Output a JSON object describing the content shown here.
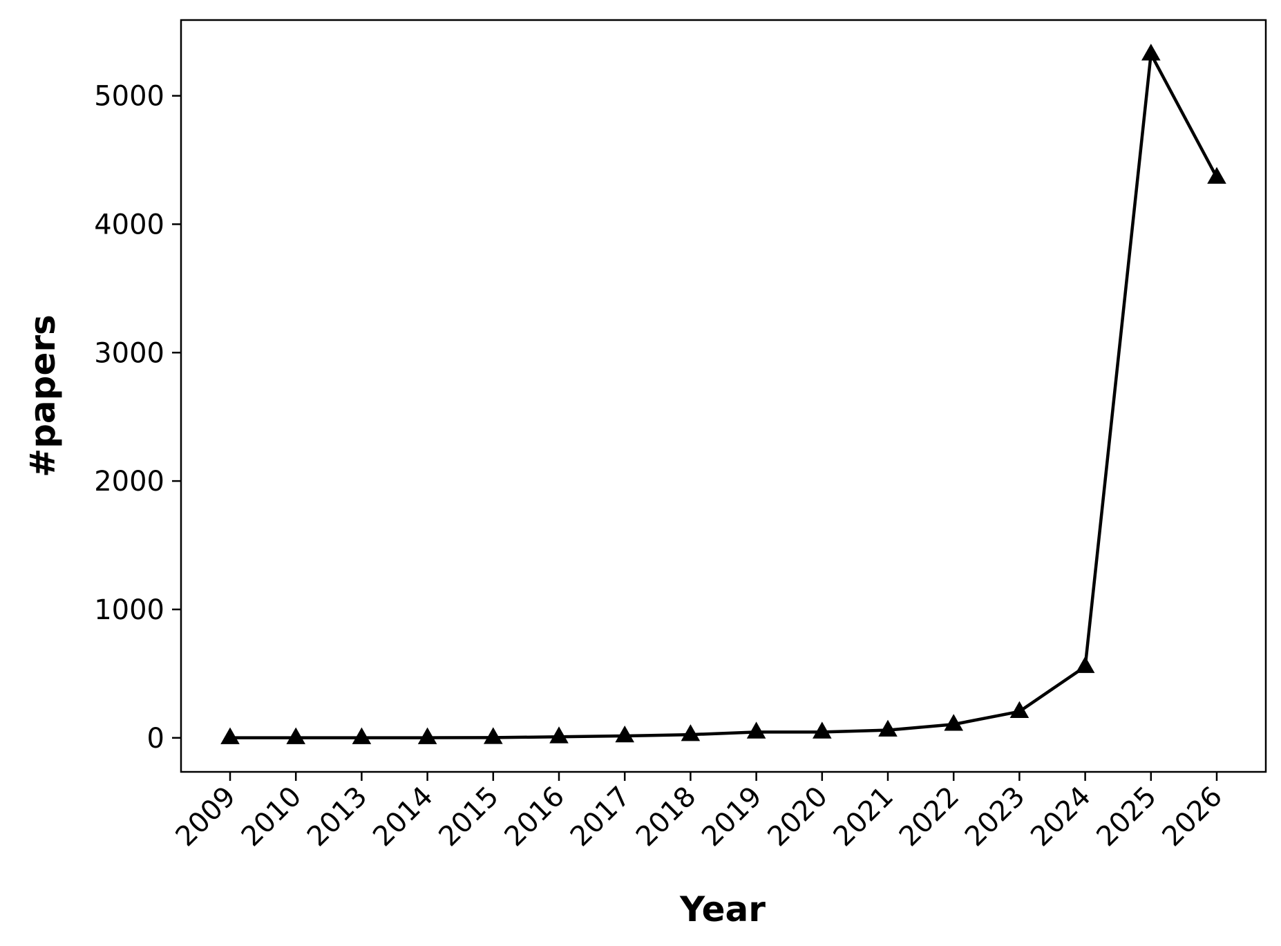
{
  "chart_data": {
    "type": "line",
    "title": "",
    "xlabel": "Year",
    "ylabel": "#papers",
    "categories": [
      "2009",
      "2010",
      "2013",
      "2014",
      "2015",
      "2016",
      "2017",
      "2018",
      "2019",
      "2020",
      "2021",
      "2022",
      "2023",
      "2024",
      "2025",
      "2026"
    ],
    "series": [
      {
        "values": [
          1,
          1,
          1,
          1,
          2,
          8,
          15,
          25,
          45,
          45,
          60,
          105,
          205,
          555,
          5325,
          4365
        ],
        "marker": "triangle-up",
        "color": "#000000"
      }
    ],
    "ylim": [
      -265,
      5590
    ],
    "yticks": [
      0,
      1000,
      2000,
      3000,
      4000,
      5000
    ],
    "grid": false,
    "legend": "none"
  }
}
